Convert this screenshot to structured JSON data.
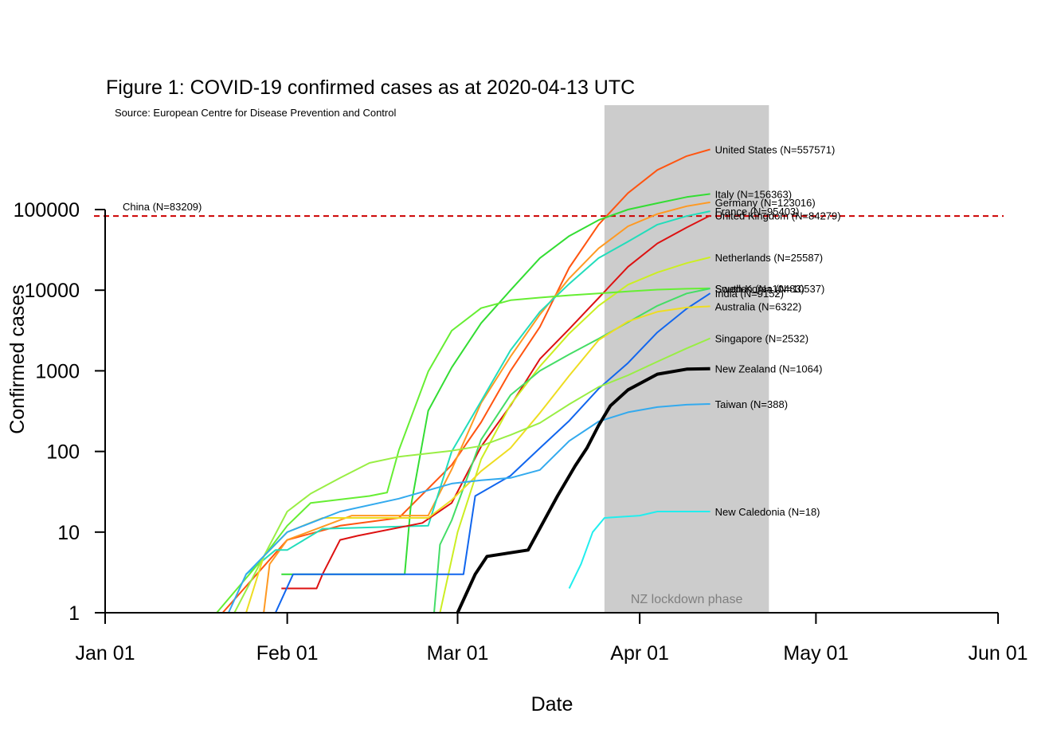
{
  "chart_data": {
    "type": "line",
    "title": "Figure 1: COVID-19 confirmed cases as at 2020-04-13 UTC",
    "subtitle": "Source: European Centre for Disease Prevention and Control",
    "xlabel": "Date",
    "ylabel": "Confirmed cases",
    "y_scale": "log",
    "xlim": [
      "2020-01-01",
      "2020-06-01"
    ],
    "ylim": [
      1,
      500000
    ],
    "x_ticks": [
      {
        "date": "2020-01-01",
        "label": "Jan 01"
      },
      {
        "date": "2020-02-01",
        "label": "Feb 01"
      },
      {
        "date": "2020-03-01",
        "label": "Mar 01"
      },
      {
        "date": "2020-04-01",
        "label": "Apr 01"
      },
      {
        "date": "2020-05-01",
        "label": "May 01"
      },
      {
        "date": "2020-06-01",
        "label": "Jun 01"
      }
    ],
    "y_ticks": [
      {
        "value": 1,
        "label": "1"
      },
      {
        "value": 10,
        "label": "10"
      },
      {
        "value": 100,
        "label": "100"
      },
      {
        "value": 1000,
        "label": "1000"
      },
      {
        "value": 10000,
        "label": "10000"
      },
      {
        "value": 100000,
        "label": "100000"
      }
    ],
    "shaded_region": {
      "start": "2020-03-26",
      "end": "2020-04-23",
      "label": "NZ lockdown phase",
      "color": "#cccccc"
    },
    "reference_line": {
      "value": 83209,
      "label": "China (N=83209)",
      "color": "#cc0000"
    },
    "series": [
      {
        "label": "United States (N=557571)",
        "color": "#ff5511",
        "width": 2,
        "points": [
          [
            "2020-01-21",
            1
          ],
          [
            "2020-02-01",
            8
          ],
          [
            "2020-02-10",
            12
          ],
          [
            "2020-02-20",
            15
          ],
          [
            "2020-02-29",
            68
          ],
          [
            "2020-03-05",
            230
          ],
          [
            "2020-03-10",
            1000
          ],
          [
            "2020-03-15",
            3500
          ],
          [
            "2020-03-20",
            19000
          ],
          [
            "2020-03-25",
            65000
          ],
          [
            "2020-03-30",
            160000
          ],
          [
            "2020-04-04",
            310000
          ],
          [
            "2020-04-09",
            460000
          ],
          [
            "2020-04-13",
            557571
          ]
        ]
      },
      {
        "label": "Italy (N=156363)",
        "color": "#33dd33",
        "width": 2,
        "points": [
          [
            "2020-01-31",
            3
          ],
          [
            "2020-02-21",
            3
          ],
          [
            "2020-02-22",
            20
          ],
          [
            "2020-02-25",
            320
          ],
          [
            "2020-02-29",
            1100
          ],
          [
            "2020-03-05",
            3900
          ],
          [
            "2020-03-10",
            10000
          ],
          [
            "2020-03-15",
            25000
          ],
          [
            "2020-03-20",
            47000
          ],
          [
            "2020-03-25",
            74000
          ],
          [
            "2020-03-30",
            100000
          ],
          [
            "2020-04-04",
            120000
          ],
          [
            "2020-04-09",
            143000
          ],
          [
            "2020-04-13",
            156363
          ]
        ]
      },
      {
        "label": "Germany (N=123016)",
        "color": "#ff9922",
        "width": 2,
        "points": [
          [
            "2020-01-28",
            1
          ],
          [
            "2020-01-29",
            4
          ],
          [
            "2020-02-01",
            8
          ],
          [
            "2020-02-12",
            16
          ],
          [
            "2020-02-25",
            16
          ],
          [
            "2020-02-29",
            60
          ],
          [
            "2020-03-05",
            400
          ],
          [
            "2020-03-10",
            1500
          ],
          [
            "2020-03-15",
            5000
          ],
          [
            "2020-03-20",
            14000
          ],
          [
            "2020-03-25",
            33000
          ],
          [
            "2020-03-30",
            62000
          ],
          [
            "2020-04-04",
            88000
          ],
          [
            "2020-04-09",
            110000
          ],
          [
            "2020-04-13",
            123016
          ]
        ]
      },
      {
        "label": "France (N=95403)",
        "color": "#22ddbb",
        "width": 2,
        "points": [
          [
            "2020-01-25",
            3
          ],
          [
            "2020-01-30",
            6
          ],
          [
            "2020-02-01",
            6
          ],
          [
            "2020-02-07",
            11
          ],
          [
            "2020-02-25",
            12
          ],
          [
            "2020-02-29",
            100
          ],
          [
            "2020-03-05",
            420
          ],
          [
            "2020-03-10",
            1800
          ],
          [
            "2020-03-15",
            5400
          ],
          [
            "2020-03-20",
            12000
          ],
          [
            "2020-03-25",
            25000
          ],
          [
            "2020-03-30",
            40000
          ],
          [
            "2020-04-04",
            65000
          ],
          [
            "2020-04-09",
            83000
          ],
          [
            "2020-04-13",
            95403
          ]
        ]
      },
      {
        "label": "United Kingdom (N=84279)",
        "color": "#dd1111",
        "width": 2,
        "points": [
          [
            "2020-01-31",
            2
          ],
          [
            "2020-02-06",
            2
          ],
          [
            "2020-02-07",
            3
          ],
          [
            "2020-02-10",
            8
          ],
          [
            "2020-02-13",
            9
          ],
          [
            "2020-02-24",
            13
          ],
          [
            "2020-02-29",
            23
          ],
          [
            "2020-03-05",
            115
          ],
          [
            "2020-03-10",
            370
          ],
          [
            "2020-03-15",
            1400
          ],
          [
            "2020-03-20",
            3300
          ],
          [
            "2020-03-25",
            8000
          ],
          [
            "2020-03-30",
            19500
          ],
          [
            "2020-04-04",
            38000
          ],
          [
            "2020-04-09",
            60000
          ],
          [
            "2020-04-13",
            84279
          ]
        ]
      },
      {
        "label": "Netherlands (N=25587)",
        "color": "#ccee22",
        "width": 2,
        "points": [
          [
            "2020-02-27",
            1
          ],
          [
            "2020-03-01",
            10
          ],
          [
            "2020-03-05",
            80
          ],
          [
            "2020-03-10",
            380
          ],
          [
            "2020-03-15",
            1135
          ],
          [
            "2020-03-20",
            2900
          ],
          [
            "2020-03-25",
            6400
          ],
          [
            "2020-03-30",
            11700
          ],
          [
            "2020-04-04",
            16600
          ],
          [
            "2020-04-09",
            21700
          ],
          [
            "2020-04-13",
            25587
          ]
        ]
      },
      {
        "label": "South Korea (N=10537)",
        "color": "#66ee33",
        "width": 2,
        "points": [
          [
            "2020-01-20",
            1
          ],
          [
            "2020-01-27",
            4
          ],
          [
            "2020-02-01",
            12
          ],
          [
            "2020-02-05",
            23
          ],
          [
            "2020-02-15",
            28
          ],
          [
            "2020-02-18",
            31
          ],
          [
            "2020-02-20",
            104
          ],
          [
            "2020-02-25",
            980
          ],
          [
            "2020-02-29",
            3150
          ],
          [
            "2020-03-05",
            6000
          ],
          [
            "2020-03-10",
            7500
          ],
          [
            "2020-03-15",
            8100
          ],
          [
            "2020-03-20",
            8650
          ],
          [
            "2020-03-25",
            9100
          ],
          [
            "2020-03-30",
            9660
          ],
          [
            "2020-04-04",
            10150
          ],
          [
            "2020-04-09",
            10420
          ],
          [
            "2020-04-13",
            10537
          ]
        ]
      },
      {
        "label": "Sweden (N=10483)",
        "color": "#44dd66",
        "width": 2,
        "points": [
          [
            "2020-02-01",
            1
          ],
          [
            "2020-02-26",
            1
          ],
          [
            "2020-02-27",
            7
          ],
          [
            "2020-02-29",
            14
          ],
          [
            "2020-03-05",
            140
          ],
          [
            "2020-03-10",
            500
          ],
          [
            "2020-03-15",
            1000
          ],
          [
            "2020-03-20",
            1600
          ],
          [
            "2020-03-25",
            2500
          ],
          [
            "2020-03-30",
            4000
          ],
          [
            "2020-04-04",
            6400
          ],
          [
            "2020-04-09",
            9100
          ],
          [
            "2020-04-13",
            10483
          ]
        ]
      },
      {
        "label": "India (N=9152)",
        "color": "#1166ee",
        "width": 2,
        "points": [
          [
            "2020-01-30",
            1
          ],
          [
            "2020-02-02",
            3
          ],
          [
            "2020-03-02",
            3
          ],
          [
            "2020-03-04",
            28
          ],
          [
            "2020-03-10",
            50
          ],
          [
            "2020-03-15",
            110
          ],
          [
            "2020-03-20",
            240
          ],
          [
            "2020-03-25",
            600
          ],
          [
            "2020-03-30",
            1250
          ],
          [
            "2020-04-04",
            3000
          ],
          [
            "2020-04-09",
            5900
          ],
          [
            "2020-04-13",
            9152
          ]
        ]
      },
      {
        "label": "Australia (N=6322)",
        "color": "#eedd22",
        "width": 2,
        "points": [
          [
            "2020-01-25",
            1
          ],
          [
            "2020-01-28",
            5
          ],
          [
            "2020-02-01",
            10
          ],
          [
            "2020-02-07",
            15
          ],
          [
            "2020-02-25",
            15
          ],
          [
            "2020-02-29",
            25
          ],
          [
            "2020-03-05",
            57
          ],
          [
            "2020-03-10",
            110
          ],
          [
            "2020-03-15",
            300
          ],
          [
            "2020-03-20",
            870
          ],
          [
            "2020-03-25",
            2400
          ],
          [
            "2020-03-30",
            4100
          ],
          [
            "2020-04-04",
            5400
          ],
          [
            "2020-04-09",
            6100
          ],
          [
            "2020-04-13",
            6322
          ]
        ]
      },
      {
        "label": "Singapore (N=2532)",
        "color": "#99ee44",
        "width": 2,
        "points": [
          [
            "2020-01-23",
            1
          ],
          [
            "2020-01-28",
            5
          ],
          [
            "2020-02-01",
            18
          ],
          [
            "2020-02-05",
            30
          ],
          [
            "2020-02-10",
            47
          ],
          [
            "2020-02-15",
            72
          ],
          [
            "2020-02-20",
            86
          ],
          [
            "2020-02-29",
            102
          ],
          [
            "2020-03-05",
            117
          ],
          [
            "2020-03-10",
            160
          ],
          [
            "2020-03-15",
            226
          ],
          [
            "2020-03-20",
            385
          ],
          [
            "2020-03-25",
            630
          ],
          [
            "2020-03-30",
            880
          ],
          [
            "2020-04-04",
            1300
          ],
          [
            "2020-04-09",
            1900
          ],
          [
            "2020-04-13",
            2532
          ]
        ]
      },
      {
        "label": "New Zealand (N=1064)",
        "color": "#000000",
        "width": 4,
        "points": [
          [
            "2020-03-01",
            1
          ],
          [
            "2020-03-04",
            3
          ],
          [
            "2020-03-06",
            5
          ],
          [
            "2020-03-13",
            6
          ],
          [
            "2020-03-18",
            28
          ],
          [
            "2020-03-21",
            66
          ],
          [
            "2020-03-23",
            110
          ],
          [
            "2020-03-25",
            210
          ],
          [
            "2020-03-27",
            368
          ],
          [
            "2020-03-30",
            580
          ],
          [
            "2020-04-04",
            909
          ],
          [
            "2020-04-09",
            1050
          ],
          [
            "2020-04-13",
            1064
          ]
        ]
      },
      {
        "label": "Taiwan (N=388)",
        "color": "#33aaee",
        "width": 2,
        "points": [
          [
            "2020-01-22",
            1
          ],
          [
            "2020-01-25",
            3
          ],
          [
            "2020-02-01",
            10
          ],
          [
            "2020-02-10",
            18
          ],
          [
            "2020-02-20",
            26
          ],
          [
            "2020-02-29",
            40
          ],
          [
            "2020-03-05",
            44
          ],
          [
            "2020-03-10",
            47
          ],
          [
            "2020-03-15",
            59
          ],
          [
            "2020-03-20",
            135
          ],
          [
            "2020-03-25",
            235
          ],
          [
            "2020-03-30",
            306
          ],
          [
            "2020-04-04",
            355
          ],
          [
            "2020-04-09",
            380
          ],
          [
            "2020-04-13",
            388
          ]
        ]
      },
      {
        "label": "New Caledonia (N=18)",
        "color": "#22eeee",
        "width": 2,
        "points": [
          [
            "2020-03-20",
            2
          ],
          [
            "2020-03-22",
            4
          ],
          [
            "2020-03-24",
            10
          ],
          [
            "2020-03-26",
            15
          ],
          [
            "2020-04-01",
            16
          ],
          [
            "2020-04-04",
            18
          ],
          [
            "2020-04-13",
            18
          ]
        ]
      }
    ],
    "label_lines": [
      {
        "series": 0
      },
      {
        "series": 1
      },
      {
        "series": 2
      },
      {
        "series": 3
      },
      {
        "series": 4
      },
      {
        "series": 5
      },
      {
        "series": 6
      },
      {
        "series": 7
      },
      {
        "series": 8
      },
      {
        "series": 9
      },
      {
        "series": 10
      },
      {
        "series": 11
      },
      {
        "series": 12
      },
      {
        "series": 13
      }
    ]
  }
}
